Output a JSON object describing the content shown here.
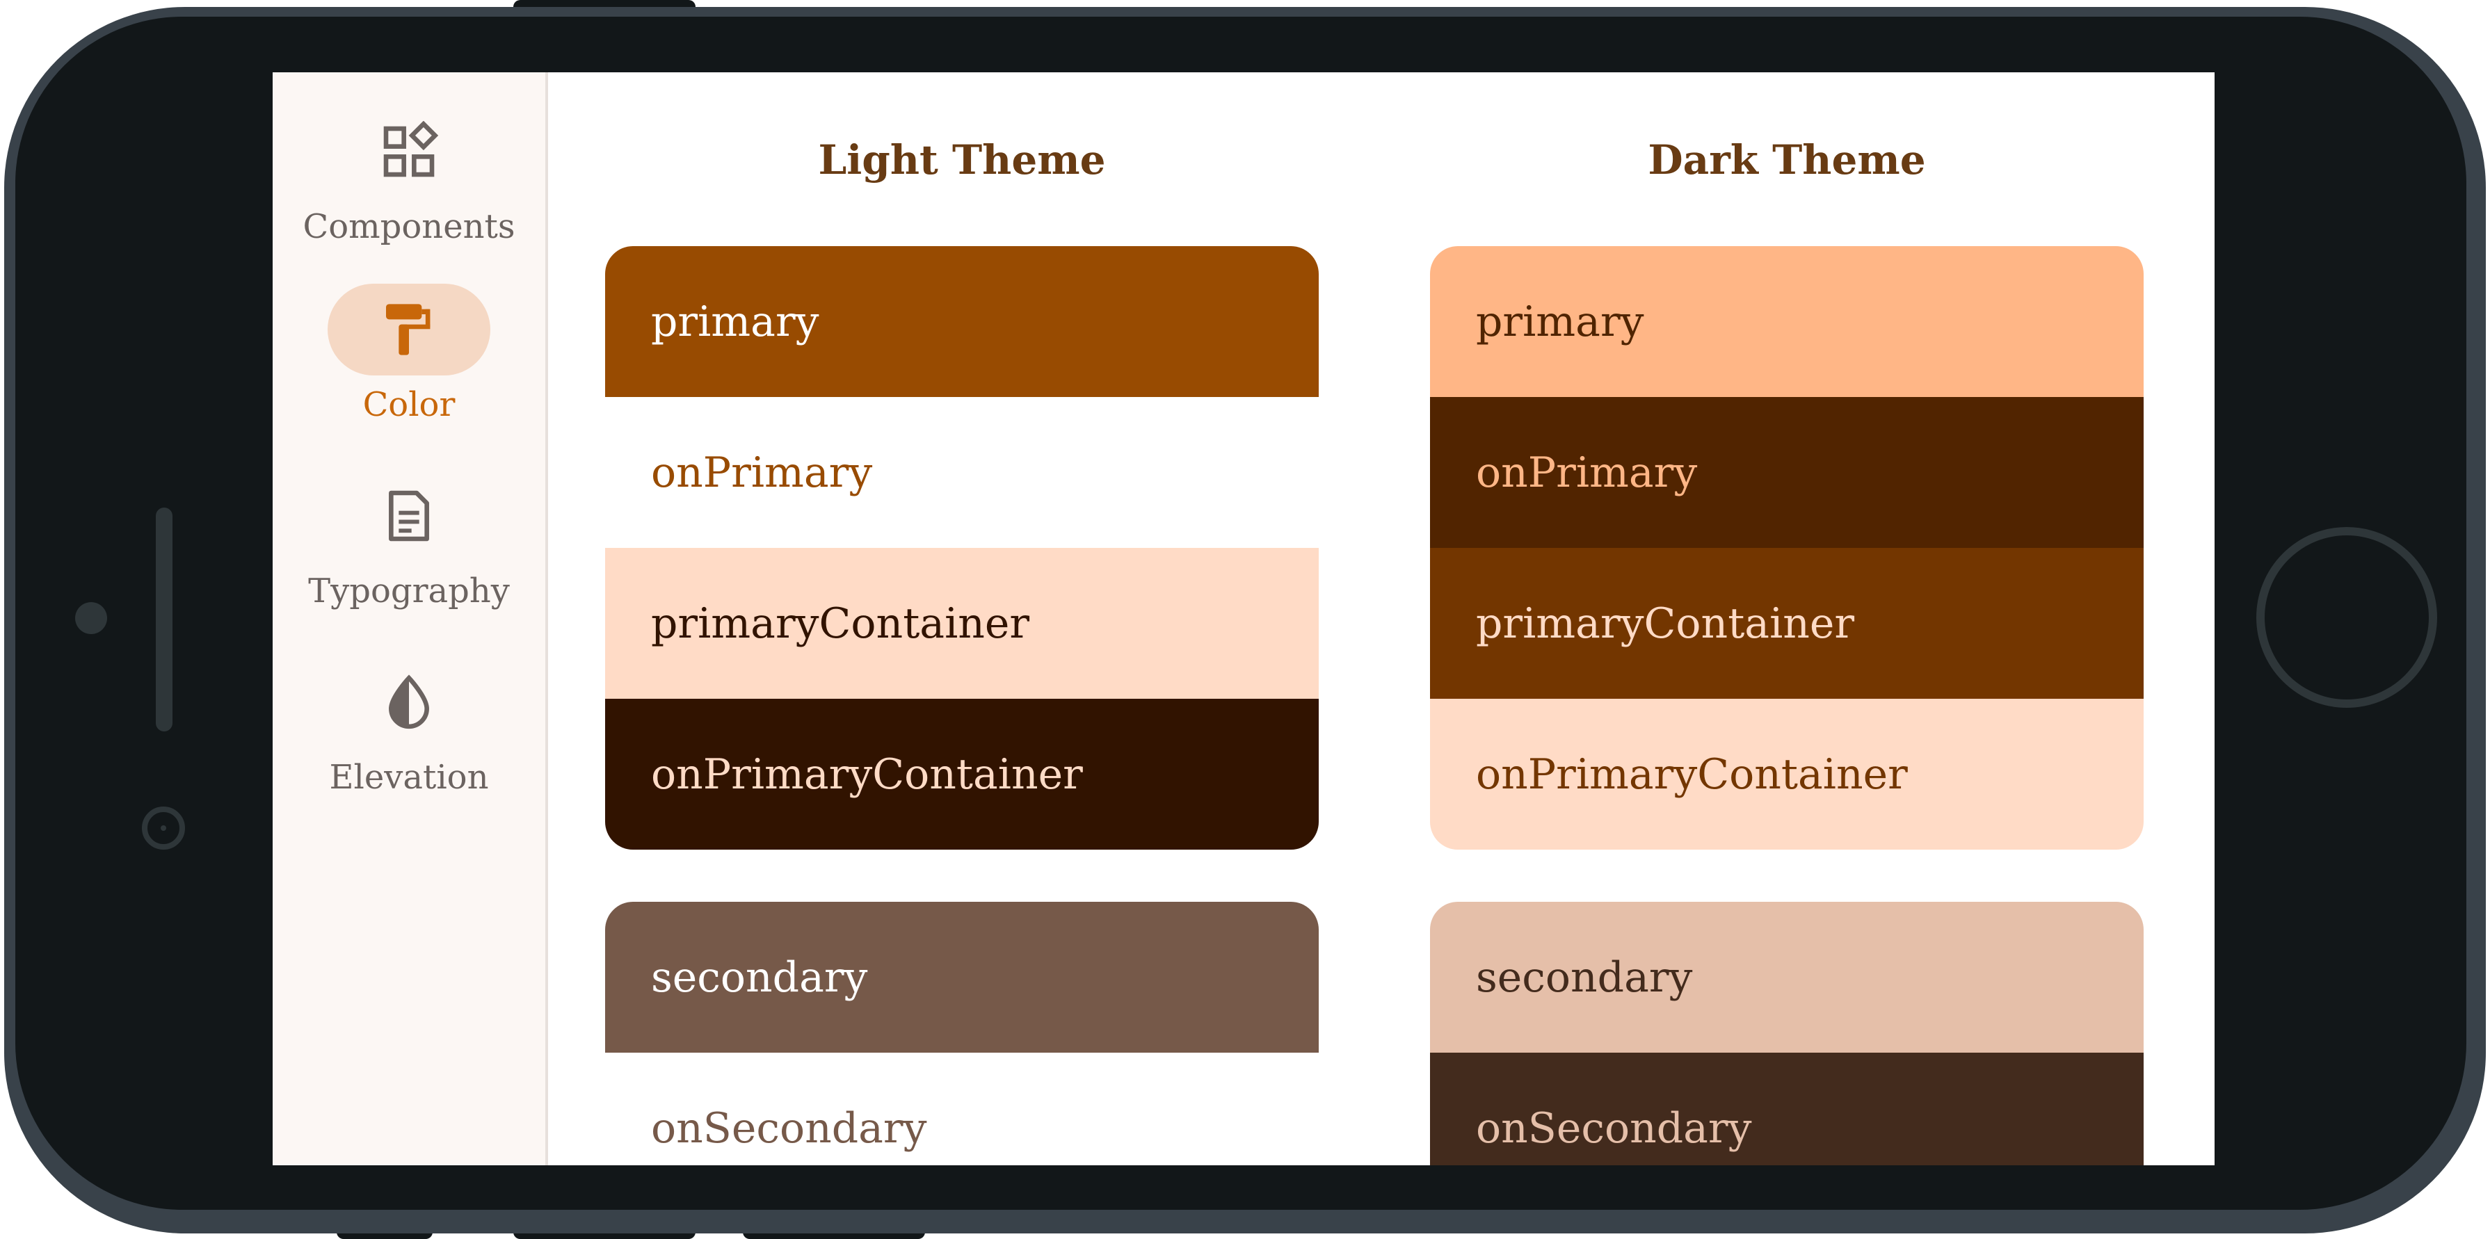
{
  "nav": {
    "items": [
      {
        "id": "components",
        "label": "Components",
        "icon": "widgets-icon",
        "active": false
      },
      {
        "id": "color",
        "label": "Color",
        "icon": "paint-roller-icon",
        "active": true
      },
      {
        "id": "typography",
        "label": "Typography",
        "icon": "article-icon",
        "active": false
      },
      {
        "id": "elevation",
        "label": "Elevation",
        "icon": "contrast-drop-icon",
        "active": false
      }
    ]
  },
  "colors": {
    "accent": "#c8670a",
    "title": "#683b13"
  },
  "light": {
    "title": "Light Theme",
    "primary_group": [
      {
        "label": "primary",
        "bg": "#984b01",
        "fg": "#ffffff"
      },
      {
        "label": "onPrimary",
        "bg": "#ffffff",
        "fg": "#984b01"
      },
      {
        "label": "primaryContainer",
        "bg": "#ffdbc6",
        "fg": "#311300"
      },
      {
        "label": "onPrimaryContainer",
        "bg": "#311300",
        "fg": "#ffdbc6"
      }
    ],
    "secondary_group": [
      {
        "label": "secondary",
        "bg": "#765949",
        "fg": "#ffffff"
      },
      {
        "label": "onSecondary",
        "bg": "#ffffff",
        "fg": "#765949"
      }
    ]
  },
  "dark": {
    "title": "Dark Theme",
    "primary_group": [
      {
        "label": "primary",
        "bg": "#ffb686",
        "fg": "#502400"
      },
      {
        "label": "onPrimary",
        "bg": "#512400",
        "fg": "#ffb686"
      },
      {
        "label": "primaryContainer",
        "bg": "#733600",
        "fg": "#ffdbc6"
      },
      {
        "label": "onPrimaryContainer",
        "bg": "#ffdbc6",
        "fg": "#733600"
      }
    ],
    "secondary_group": [
      {
        "label": "secondary",
        "bg": "#e5bfa9",
        "fg": "#432b1d"
      },
      {
        "label": "onSecondary",
        "bg": "#432b1d",
        "fg": "#e5bfa9"
      }
    ]
  }
}
